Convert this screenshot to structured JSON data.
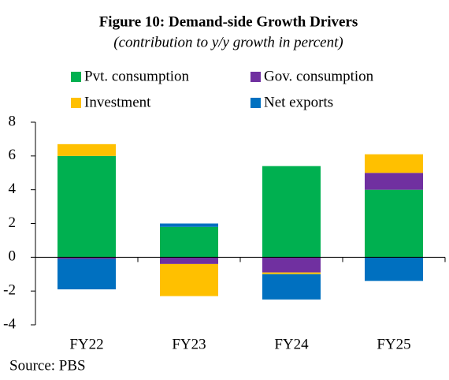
{
  "chart_data": {
    "type": "stacked-bar",
    "title": "Figure 10: Demand-side Growth Drivers",
    "subtitle": "(contribution to y/y growth in percent)",
    "categories": [
      "FY22",
      "FY23",
      "FY24",
      "FY25"
    ],
    "series": [
      {
        "name": "Pvt. consumption",
        "color": "#00b050",
        "values": [
          6.0,
          1.8,
          5.4,
          4.0
        ]
      },
      {
        "name": "Gov. consumption",
        "color": "#7030a0",
        "values": [
          -0.1,
          -0.4,
          -0.9,
          1.0
        ]
      },
      {
        "name": "Investment",
        "color": "#ffc000",
        "values": [
          0.7,
          -1.9,
          -0.1,
          1.1
        ]
      },
      {
        "name": "Net exports",
        "color": "#0070c0",
        "values": [
          -1.8,
          0.2,
          -1.5,
          -1.4
        ]
      }
    ],
    "ylim": [
      -4,
      8
    ],
    "yticks": [
      -4,
      -2,
      0,
      2,
      4,
      6,
      8
    ],
    "source": "Source: PBS"
  }
}
